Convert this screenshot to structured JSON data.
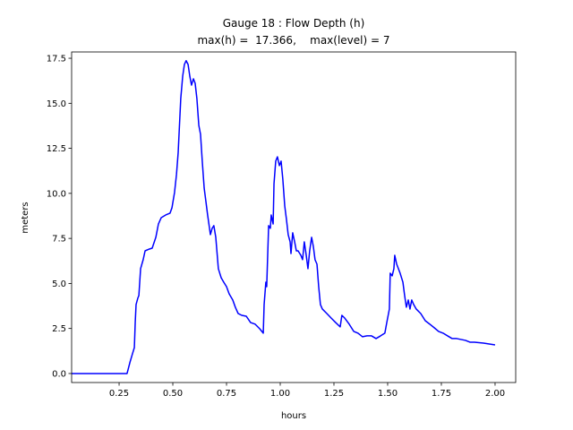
{
  "chart_data": {
    "type": "line",
    "title": "Gauge 18 : Flow Depth (h)",
    "subtitle": "max(h) =  17.366,    max(level) = 7",
    "xlabel": "hours",
    "ylabel": "meters",
    "xlim": [
      0.029,
      2.096
    ],
    "ylim": [
      -0.5,
      17.85
    ],
    "xticks": [
      0.25,
      {
        "value": 0.5,
        "label": "0.50"
      },
      0.75,
      {
        "value": 1.0,
        "label": "1.00"
      },
      1.25,
      {
        "value": 1.5,
        "label": "1.50"
      },
      1.75,
      {
        "value": 2.0,
        "label": "2.00"
      }
    ],
    "yticks": [
      {
        "value": 0,
        "label": "0.0"
      },
      2.5,
      {
        "value": 5,
        "label": "5.0"
      },
      7.5,
      {
        "value": 10,
        "label": "10.0"
      },
      12.5,
      {
        "value": 15,
        "label": "15.0"
      },
      17.5
    ],
    "grid": false,
    "x": [
      0.029,
      0.287,
      0.3,
      0.312,
      0.321,
      0.325,
      0.329,
      0.337,
      0.342,
      0.35,
      0.362,
      0.371,
      0.391,
      0.404,
      0.421,
      0.433,
      0.446,
      0.467,
      0.487,
      0.496,
      0.508,
      0.517,
      0.525,
      0.529,
      0.537,
      0.546,
      0.554,
      0.562,
      0.571,
      0.579,
      0.587,
      0.596,
      0.604,
      0.612,
      0.621,
      0.629,
      0.637,
      0.646,
      0.654,
      0.662,
      0.675,
      0.683,
      0.691,
      0.7,
      0.712,
      0.725,
      0.737,
      0.75,
      0.762,
      0.779,
      0.791,
      0.804,
      0.821,
      0.842,
      0.862,
      0.883,
      0.904,
      0.921,
      0.925,
      0.933,
      0.937,
      0.946,
      0.954,
      0.958,
      0.967,
      0.971,
      0.979,
      0.987,
      0.996,
      1.004,
      1.012,
      1.021,
      1.029,
      1.037,
      1.046,
      1.05,
      1.058,
      1.067,
      1.075,
      1.083,
      1.096,
      1.104,
      1.112,
      1.121,
      1.129,
      1.137,
      1.146,
      1.154,
      1.162,
      1.171,
      1.179,
      1.187,
      1.196,
      1.217,
      1.237,
      1.258,
      1.279,
      1.287,
      1.3,
      1.321,
      1.342,
      1.362,
      1.383,
      1.404,
      1.425,
      1.446,
      1.467,
      1.487,
      1.496,
      1.508,
      1.512,
      1.521,
      1.529,
      1.533,
      1.542,
      1.55,
      1.558,
      1.571,
      1.579,
      1.587,
      1.596,
      1.604,
      1.612,
      1.621,
      1.633,
      1.654,
      1.675,
      1.696,
      1.717,
      1.737,
      1.758,
      1.779,
      1.8,
      1.821,
      1.862,
      1.883,
      1.904,
      1.946,
      2.0
    ],
    "series": [
      {
        "name": "h",
        "color": "#0000ff",
        "values": [
          0,
          0,
          0.6,
          1.09,
          1.44,
          2.83,
          3.83,
          4.18,
          4.33,
          5.82,
          6.32,
          6.81,
          6.91,
          6.96,
          7.56,
          8.3,
          8.65,
          8.8,
          8.9,
          9.2,
          10.05,
          11.04,
          12.28,
          13.28,
          15.27,
          16.51,
          17.16,
          17.366,
          17.16,
          16.51,
          16.01,
          16.36,
          16.11,
          15.27,
          13.78,
          13.28,
          11.79,
          10.29,
          9.55,
          8.8,
          7.71,
          8.06,
          8.21,
          7.56,
          5.82,
          5.32,
          5.07,
          4.82,
          4.43,
          4.08,
          3.68,
          3.33,
          3.23,
          3.18,
          2.83,
          2.74,
          2.49,
          2.24,
          3.83,
          5.07,
          4.82,
          8.21,
          8.06,
          8.8,
          8.3,
          10.54,
          11.79,
          12.03,
          11.54,
          11.79,
          10.79,
          9.3,
          8.55,
          7.71,
          7.31,
          6.66,
          7.81,
          7.31,
          6.81,
          6.81,
          6.56,
          6.32,
          7.31,
          6.56,
          5.82,
          6.81,
          7.56,
          7.06,
          6.32,
          6.07,
          4.82,
          3.83,
          3.58,
          3.33,
          3.08,
          2.83,
          2.59,
          3.23,
          3.08,
          2.74,
          2.34,
          2.24,
          2.04,
          2.09,
          2.09,
          1.94,
          2.09,
          2.24,
          2.83,
          3.58,
          5.57,
          5.42,
          5.82,
          6.56,
          6.07,
          5.82,
          5.57,
          5.07,
          4.33,
          3.68,
          4.08,
          3.58,
          4.08,
          3.83,
          3.58,
          3.33,
          2.93,
          2.74,
          2.54,
          2.34,
          2.24,
          2.09,
          1.94,
          1.94,
          1.84,
          1.74,
          1.74,
          1.69,
          1.59
        ]
      }
    ]
  }
}
